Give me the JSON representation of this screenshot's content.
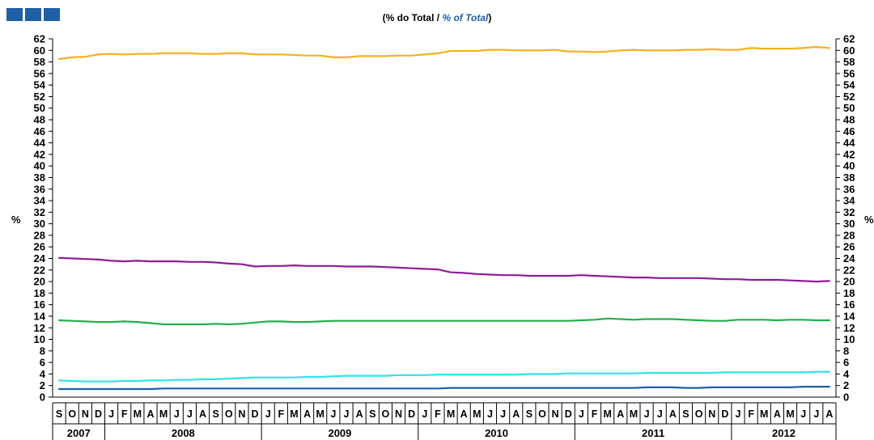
{
  "header": {
    "logo_icon": "brand-logo-icon"
  },
  "chart_data": {
    "type": "line",
    "title": "",
    "subtitle_pt": "% do Total",
    "subtitle_sep": " / ",
    "subtitle_en": "% of Total",
    "ylabel_left": "%",
    "ylabel_right": "%",
    "ylim": [
      0,
      62
    ],
    "ytick_step": 2,
    "grid": false,
    "months": [
      "S",
      "O",
      "N",
      "D",
      "J",
      "F",
      "M",
      "A",
      "M",
      "J",
      "J",
      "A",
      "S",
      "O",
      "N",
      "D",
      "J",
      "F",
      "M",
      "A",
      "M",
      "J",
      "J",
      "A",
      "S",
      "O",
      "N",
      "D",
      "J",
      "F",
      "M",
      "A",
      "M",
      "J",
      "J",
      "A",
      "S",
      "O",
      "N",
      "D",
      "J",
      "F",
      "M",
      "A",
      "M",
      "J",
      "J",
      "A",
      "S",
      "O",
      "N",
      "D",
      "J",
      "F",
      "M",
      "A",
      "M",
      "J",
      "J",
      "A"
    ],
    "years": [
      {
        "label": "2007",
        "months": 4
      },
      {
        "label": "2008",
        "months": 12
      },
      {
        "label": "2009",
        "months": 12
      },
      {
        "label": "2010",
        "months": 12
      },
      {
        "label": "2011",
        "months": 12
      },
      {
        "label": "2012",
        "months": 8
      }
    ],
    "series": [
      {
        "color": "#f5b21b",
        "values": [
          58.5,
          58.8,
          58.9,
          59.3,
          59.4,
          59.3,
          59.4,
          59.4,
          59.5,
          59.5,
          59.5,
          59.4,
          59.4,
          59.5,
          59.5,
          59.3,
          59.3,
          59.3,
          59.2,
          59.1,
          59.1,
          58.8,
          58.8,
          59.0,
          59.0,
          59.0,
          59.1,
          59.1,
          59.3,
          59.5,
          59.9,
          59.9,
          59.9,
          60.1,
          60.1,
          60.0,
          60.0,
          60.0,
          60.1,
          59.8,
          59.8,
          59.7,
          59.8,
          60.0,
          60.1,
          60.0,
          60.0,
          60.0,
          60.1,
          60.1,
          60.2,
          60.1,
          60.1,
          60.4,
          60.3,
          60.3,
          60.3,
          60.4,
          60.6,
          60.4
        ]
      },
      {
        "color": "#8e1c96",
        "values": [
          24.1,
          24.0,
          23.9,
          23.8,
          23.6,
          23.5,
          23.6,
          23.5,
          23.5,
          23.5,
          23.4,
          23.4,
          23.3,
          23.1,
          23.0,
          22.6,
          22.7,
          22.7,
          22.8,
          22.7,
          22.7,
          22.7,
          22.6,
          22.6,
          22.6,
          22.5,
          22.4,
          22.3,
          22.2,
          22.1,
          21.6,
          21.5,
          21.3,
          21.2,
          21.1,
          21.1,
          21.0,
          21.0,
          21.0,
          21.0,
          21.1,
          21.0,
          20.9,
          20.8,
          20.7,
          20.7,
          20.6,
          20.6,
          20.6,
          20.6,
          20.5,
          20.4,
          20.4,
          20.3,
          20.3,
          20.3,
          20.2,
          20.1,
          20.0,
          20.1
        ]
      },
      {
        "color": "#21b04b",
        "values": [
          13.3,
          13.2,
          13.1,
          13.0,
          13.0,
          13.1,
          13.0,
          12.8,
          12.6,
          12.6,
          12.6,
          12.6,
          12.7,
          12.6,
          12.7,
          12.9,
          13.1,
          13.1,
          13.0,
          13.0,
          13.1,
          13.2,
          13.2,
          13.2,
          13.2,
          13.2,
          13.2,
          13.2,
          13.2,
          13.2,
          13.2,
          13.2,
          13.2,
          13.2,
          13.2,
          13.2,
          13.2,
          13.2,
          13.2,
          13.2,
          13.3,
          13.4,
          13.6,
          13.5,
          13.4,
          13.5,
          13.5,
          13.5,
          13.4,
          13.3,
          13.2,
          13.2,
          13.4,
          13.4,
          13.4,
          13.3,
          13.4,
          13.4,
          13.3,
          13.3
        ]
      },
      {
        "color": "#2ee3ea",
        "values": [
          2.9,
          2.8,
          2.7,
          2.7,
          2.7,
          2.8,
          2.8,
          2.9,
          2.9,
          3.0,
          3.0,
          3.1,
          3.1,
          3.2,
          3.3,
          3.4,
          3.4,
          3.4,
          3.4,
          3.5,
          3.5,
          3.6,
          3.7,
          3.7,
          3.7,
          3.7,
          3.8,
          3.8,
          3.8,
          3.9,
          3.9,
          3.9,
          3.9,
          3.9,
          3.9,
          3.9,
          4.0,
          4.0,
          4.0,
          4.1,
          4.1,
          4.1,
          4.1,
          4.1,
          4.1,
          4.2,
          4.2,
          4.2,
          4.2,
          4.2,
          4.2,
          4.3,
          4.3,
          4.3,
          4.3,
          4.3,
          4.3,
          4.3,
          4.4,
          4.4
        ]
      },
      {
        "color": "#1f5fa8",
        "values": [
          1.4,
          1.4,
          1.4,
          1.4,
          1.4,
          1.4,
          1.4,
          1.4,
          1.5,
          1.5,
          1.5,
          1.5,
          1.5,
          1.5,
          1.5,
          1.5,
          1.5,
          1.5,
          1.5,
          1.5,
          1.5,
          1.5,
          1.5,
          1.5,
          1.5,
          1.5,
          1.5,
          1.5,
          1.5,
          1.5,
          1.6,
          1.6,
          1.6,
          1.6,
          1.6,
          1.6,
          1.6,
          1.6,
          1.6,
          1.6,
          1.6,
          1.6,
          1.6,
          1.6,
          1.6,
          1.7,
          1.7,
          1.7,
          1.6,
          1.6,
          1.7,
          1.7,
          1.7,
          1.7,
          1.7,
          1.7,
          1.7,
          1.8,
          1.8,
          1.8
        ]
      }
    ]
  }
}
